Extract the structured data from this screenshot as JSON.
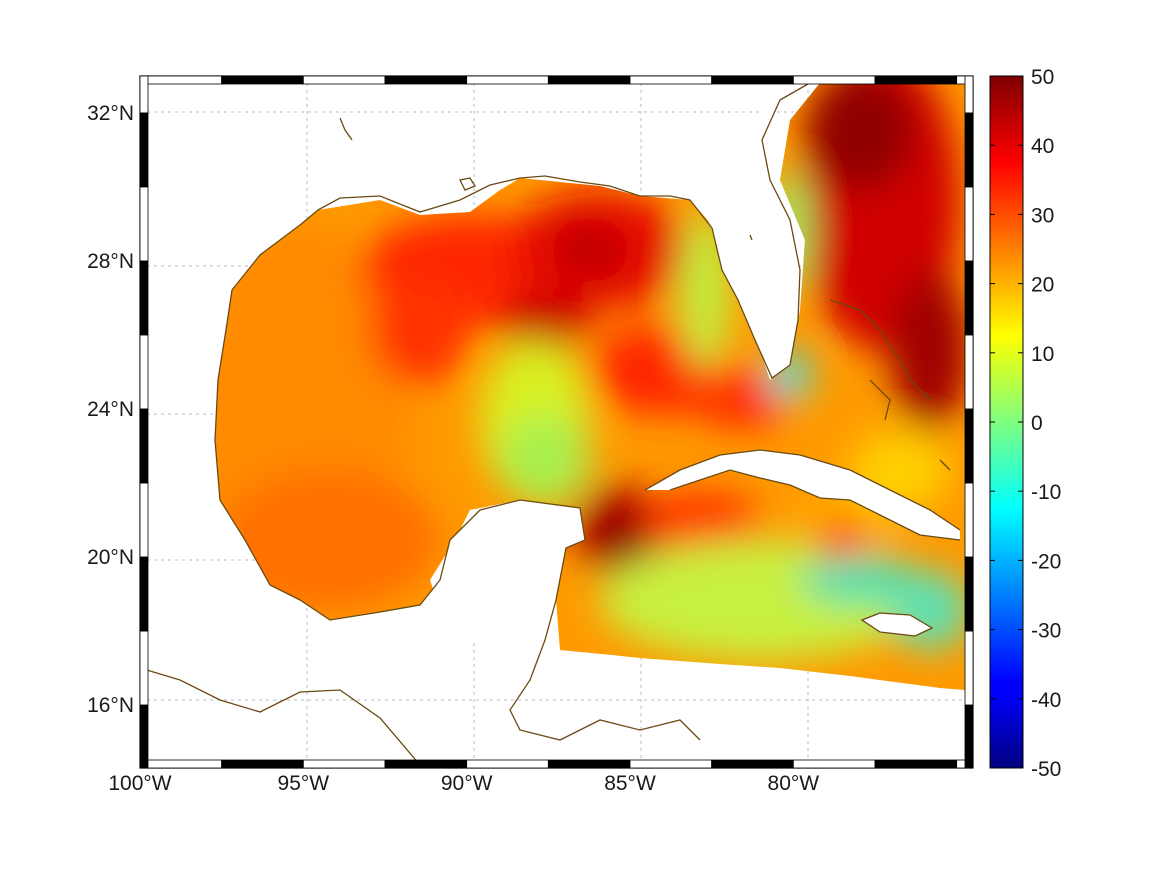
{
  "map": {
    "lon_range": [
      -100,
      -74.5
    ],
    "lat_range": [
      14.3,
      33
    ],
    "x_ticks": [
      {
        "value": -100,
        "label": "100°W"
      },
      {
        "value": -95,
        "label": "95°W"
      },
      {
        "value": -90,
        "label": "90°W"
      },
      {
        "value": -85,
        "label": "85°W"
      },
      {
        "value": -80,
        "label": "80°W"
      }
    ],
    "y_ticks": [
      {
        "value": 32,
        "label": "32°N"
      },
      {
        "value": 28,
        "label": "28°N"
      },
      {
        "value": 24,
        "label": "24°N"
      },
      {
        "value": 20,
        "label": "20°N"
      },
      {
        "value": 16,
        "label": "16°N"
      }
    ],
    "grid": true,
    "coastline_color": "#6b4a12",
    "colormap": "jet"
  },
  "colorbar": {
    "range": [
      -50,
      50
    ],
    "ticks": [
      {
        "value": 50,
        "label": "50"
      },
      {
        "value": 40,
        "label": "40"
      },
      {
        "value": 30,
        "label": "30"
      },
      {
        "value": 20,
        "label": "20"
      },
      {
        "value": 10,
        "label": "10"
      },
      {
        "value": 0,
        "label": "0"
      },
      {
        "value": -10,
        "label": "-10"
      },
      {
        "value": -20,
        "label": "-20"
      },
      {
        "value": -30,
        "label": "-30"
      },
      {
        "value": -40,
        "label": "-40"
      },
      {
        "value": -50,
        "label": "-50"
      }
    ]
  }
}
